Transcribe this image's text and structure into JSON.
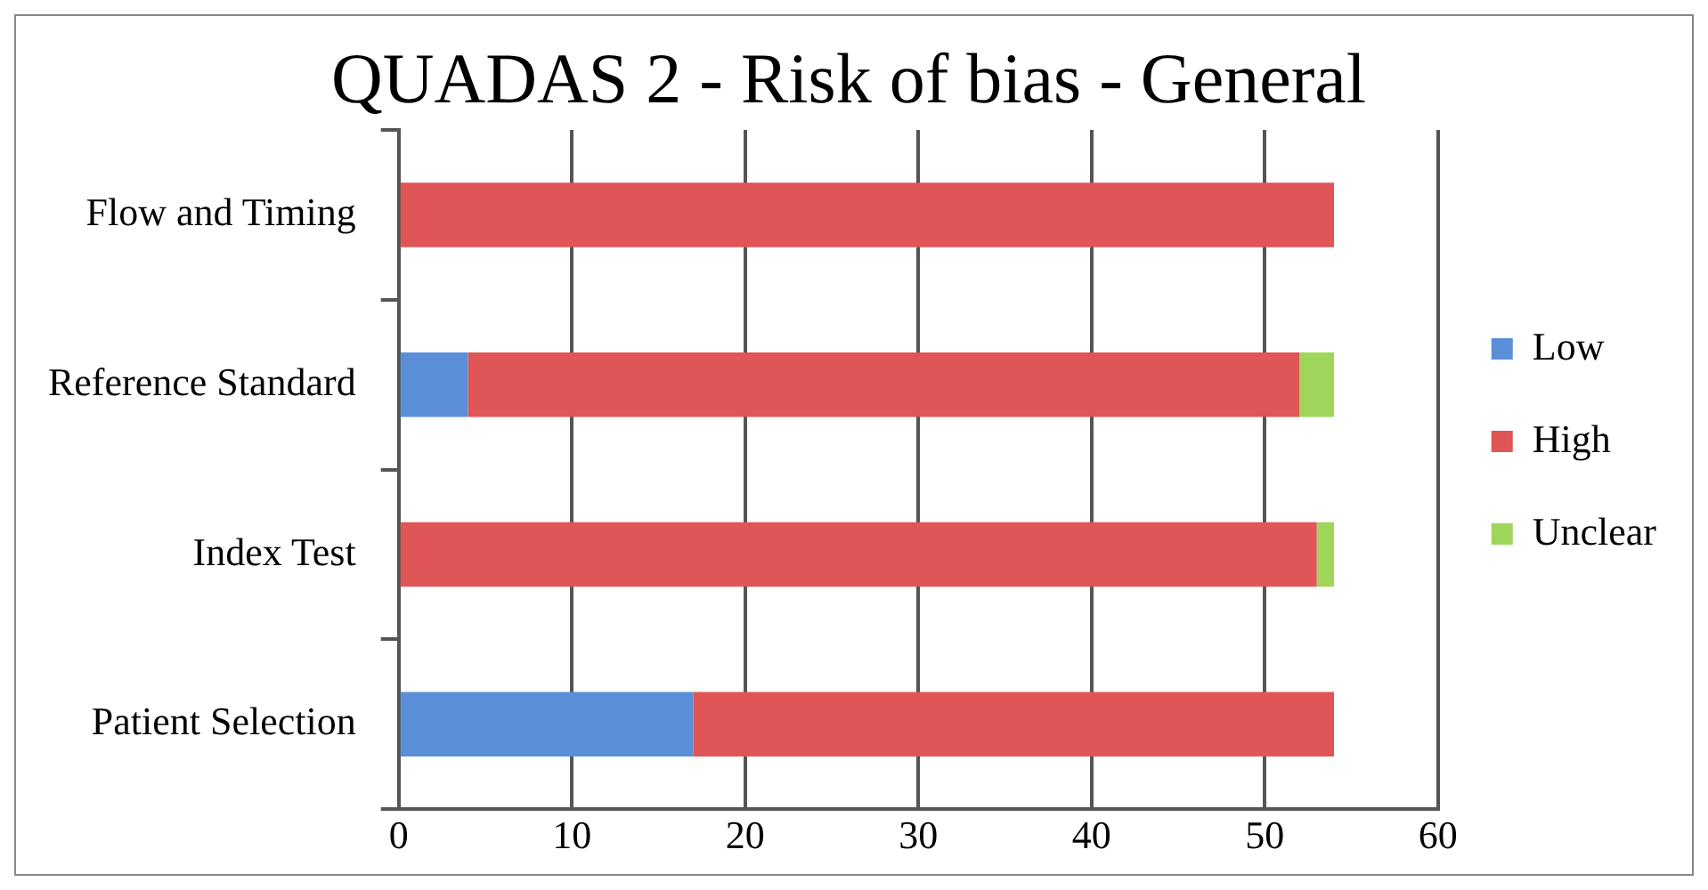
{
  "chart_data": {
    "type": "bar",
    "title": "QUADAS 2 - Risk of bias - General",
    "orientation": "horizontal",
    "stacked": true,
    "categories": [
      "Flow and Timing",
      "Reference Standard",
      "Index Test",
      "Patient Selection"
    ],
    "series": [
      {
        "name": "Low",
        "color": "#5a8fd8",
        "values": [
          0,
          4,
          0,
          17
        ]
      },
      {
        "name": "High",
        "color": "#e05555",
        "values": [
          54,
          48,
          53,
          37
        ]
      },
      {
        "name": "Unclear",
        "color": "#9fd55a",
        "values": [
          0,
          2,
          1,
          0
        ]
      }
    ],
    "xlim": [
      0,
      60
    ],
    "xticks": [
      0,
      10,
      20,
      30,
      40,
      50,
      60
    ],
    "grid": "x",
    "legend": "right"
  }
}
